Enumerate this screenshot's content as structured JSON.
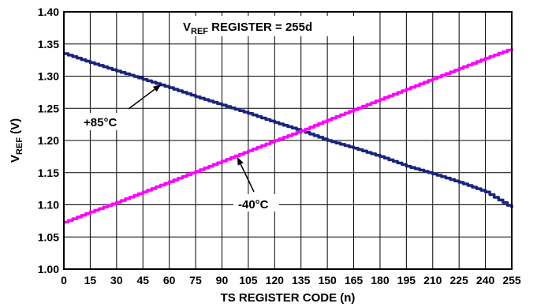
{
  "chart_data": {
    "type": "line",
    "title_main": "V",
    "title_sub": "REF",
    "title_rest": " REGISTER = 255d",
    "xlabel": "TS REGISTER CODE (n)",
    "ylabel_main": "V",
    "ylabel_sub": "REF",
    "ylabel_rest": " (V)",
    "xlim": [
      0,
      255
    ],
    "ylim": [
      1.0,
      1.4
    ],
    "x_ticks": [
      "0",
      "15",
      "30",
      "45",
      "60",
      "75",
      "90",
      "105",
      "120",
      "135",
      "150",
      "165",
      "180",
      "195",
      "210",
      "225",
      "240",
      "255"
    ],
    "y_ticks": [
      "1.00",
      "1.05",
      "1.10",
      "1.15",
      "1.20",
      "1.25",
      "1.30",
      "1.35",
      "1.40"
    ],
    "grid": true,
    "series": [
      {
        "name": "+85°C",
        "color": "#1a237e",
        "x": [
          0,
          15,
          30,
          45,
          60,
          75,
          90,
          105,
          120,
          135,
          150,
          165,
          180,
          195,
          210,
          225,
          240,
          255
        ],
        "y": [
          1.335,
          1.321,
          1.308,
          1.295,
          1.282,
          1.268,
          1.255,
          1.242,
          1.228,
          1.215,
          1.2,
          1.188,
          1.175,
          1.16,
          1.148,
          1.135,
          1.12,
          1.095
        ]
      },
      {
        "name": "-40°C",
        "color": "#ff00ff",
        "x": [
          0,
          15,
          30,
          45,
          60,
          75,
          90,
          105,
          120,
          135,
          150,
          165,
          180,
          195,
          210,
          225,
          240,
          255
        ],
        "y": [
          1.073,
          1.089,
          1.104,
          1.12,
          1.136,
          1.152,
          1.168,
          1.184,
          1.2,
          1.215,
          1.232,
          1.248,
          1.264,
          1.28,
          1.296,
          1.312,
          1.328,
          1.343
        ]
      }
    ],
    "annotations": [
      {
        "text": "+85°C",
        "series": 0,
        "arrow_to_x": 55,
        "arrow_to_y": 1.29
      },
      {
        "text": "-40°C",
        "series": 1,
        "arrow_to_x": 98,
        "arrow_to_y": 1.178
      }
    ]
  }
}
